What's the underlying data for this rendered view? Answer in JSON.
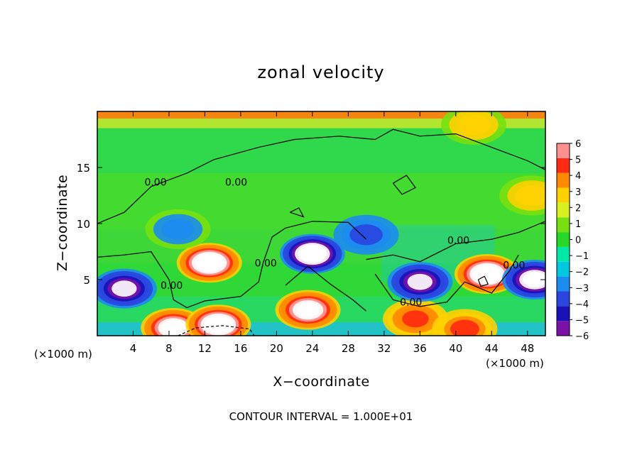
{
  "chart_data": {
    "type": "heatmap",
    "title": "zonal velocity",
    "xlabel": "X−coordinate",
    "ylabel": "Z−coordinate",
    "x_unit_label": "(×1000 m)",
    "xlim": [
      0,
      50
    ],
    "ylim": [
      0,
      20
    ],
    "x_ticks": [
      4,
      8,
      12,
      16,
      20,
      24,
      28,
      32,
      36,
      40,
      44,
      48
    ],
    "y_ticks": [
      5,
      10,
      15
    ],
    "colorbar": {
      "ticks": [
        6,
        5,
        4,
        3,
        2,
        1,
        0,
        -1,
        -2,
        -3,
        -4,
        -5,
        -6
      ],
      "range": [
        -6,
        6
      ],
      "colors": [
        "#7a12a8",
        "#1a10b8",
        "#2a45e0",
        "#1c8cf0",
        "#00c8e0",
        "#00e8a8",
        "#28d828",
        "#78e010",
        "#d8f020",
        "#ffd000",
        "#ff8a00",
        "#ff2a10",
        "#ff9090"
      ]
    },
    "contour_labels": [
      {
        "text": "0.00",
        "x": 6.5,
        "z": 13.7
      },
      {
        "text": "0.00",
        "x": 15.5,
        "z": 13.7
      },
      {
        "text": "0.00",
        "x": 8.3,
        "z": 4.5
      },
      {
        "text": "0.00",
        "x": 18.8,
        "z": 6.5
      },
      {
        "text": "0.00",
        "x": 35.0,
        "z": 3.0
      },
      {
        "text": "0.00",
        "x": 40.3,
        "z": 8.5
      },
      {
        "text": "0.00",
        "x": 46.5,
        "z": 6.3
      }
    ],
    "contour_interval_text": "CONTOUR INTERVAL =  1.000E+01",
    "field_features": [
      {
        "type": "jet",
        "x": 12.5,
        "z": 6.5,
        "value": 8
      },
      {
        "type": "jet",
        "x": 8.5,
        "z": 0.7,
        "value": 7
      },
      {
        "type": "jet",
        "x": 13.5,
        "z": 1.0,
        "value": 7.5
      },
      {
        "type": "jet",
        "x": 23.5,
        "z": 2.3,
        "value": 7
      },
      {
        "type": "jet",
        "x": 43.5,
        "z": 5.5,
        "value": 8
      },
      {
        "type": "jet",
        "x": 35.5,
        "z": 1.5,
        "value": 4.5
      },
      {
        "type": "jet",
        "x": 41.0,
        "z": 0.6,
        "value": 4
      },
      {
        "type": "jet",
        "x": 48.5,
        "z": 12.5,
        "value": 2.5
      },
      {
        "type": "jet",
        "x": 42.0,
        "z": 18.8,
        "value": 2.5
      },
      {
        "type": "jet",
        "x": 24.0,
        "z": 7.3,
        "value": -8
      },
      {
        "type": "jet",
        "x": 36.0,
        "z": 4.8,
        "value": -6
      },
      {
        "type": "jet",
        "x": 3.0,
        "z": 4.2,
        "value": -6
      },
      {
        "type": "jet",
        "x": 9.0,
        "z": 9.5,
        "value": -2.5
      },
      {
        "type": "jet",
        "x": 30.0,
        "z": 9.0,
        "value": -3
      },
      {
        "type": "jet",
        "x": 48.8,
        "z": 5.0,
        "value": -7
      }
    ]
  }
}
